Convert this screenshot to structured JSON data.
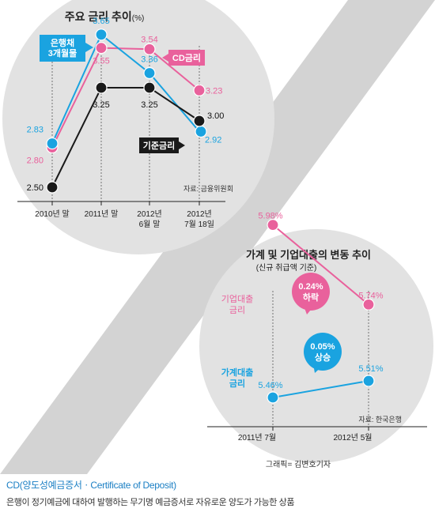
{
  "colors": {
    "blue": "#1aa3e0",
    "pink": "#e9619c",
    "black": "#1a1a1a",
    "circle": "#e2e2e2",
    "stripe": "#d3d3d3"
  },
  "chart_data": [
    {
      "type": "line",
      "title": "주요 금리 추이",
      "unit": "(%)",
      "source": "자료: 금융위원회",
      "categories": [
        "2010년 말",
        "2011년 말",
        "2012년 6월 말",
        "2012년 7월 18일"
      ],
      "category_lines": [
        [
          "2010년 말"
        ],
        [
          "2011년 말"
        ],
        [
          "2012년",
          "6월 말"
        ],
        [
          "2012년",
          "7월 18일"
        ]
      ],
      "ylim": [
        2.3,
        3.8
      ],
      "series": [
        {
          "name": "은행채 3개월물",
          "label_lines": [
            "은행채",
            "3개월물"
          ],
          "color_key": "blue",
          "values": [
            2.83,
            3.65,
            3.36,
            2.92
          ],
          "labels": [
            "2.83",
            "3.65",
            "3.36",
            "2.92"
          ]
        },
        {
          "name": "CD금리",
          "label_lines": [
            "CD금리"
          ],
          "color_key": "pink",
          "values": [
            2.8,
            3.55,
            3.54,
            3.23
          ],
          "labels": [
            "2.80",
            "3.55",
            "3.54",
            "3.23"
          ]
        },
        {
          "name": "기준금리",
          "label_lines": [
            "기준금리"
          ],
          "color_key": "black",
          "values": [
            2.5,
            3.25,
            3.25,
            3.0
          ],
          "labels": [
            "2.50",
            "3.25",
            "3.25",
            "3.00"
          ]
        }
      ]
    },
    {
      "type": "line",
      "title": "가계 및 기업대출의 변동 추이",
      "subtitle": "(신규 취급액 기준)",
      "source": "자료: 한국은행",
      "credit": "그래픽= 김변호기자",
      "categories": [
        "2011년 7월",
        "2012년 5월"
      ],
      "ylim": [
        5.3,
        6.1
      ],
      "series": [
        {
          "name": "기업대출 금리",
          "label_lines": [
            "기업대출",
            "금리"
          ],
          "color_key": "pink",
          "values": [
            5.98,
            5.74
          ],
          "labels": [
            "5.98%",
            "5.74%"
          ],
          "change": {
            "lines": [
              "0.24%",
              "하락"
            ]
          }
        },
        {
          "name": "가계대출 금리",
          "label_lines": [
            "가계대출",
            "금리"
          ],
          "color_key": "blue",
          "values": [
            5.46,
            5.51
          ],
          "labels": [
            "5.46%",
            "5.51%"
          ],
          "change": {
            "lines": [
              "0.05%",
              "상승"
            ]
          }
        }
      ]
    }
  ],
  "footer": {
    "term": "CD(양도성예금증서ㆍCertificate of Deposit)",
    "description": "은행이 정기예금에 대하여 발행하는 무기명 예금증서로 자유로운 양도가 가능한 상품"
  }
}
